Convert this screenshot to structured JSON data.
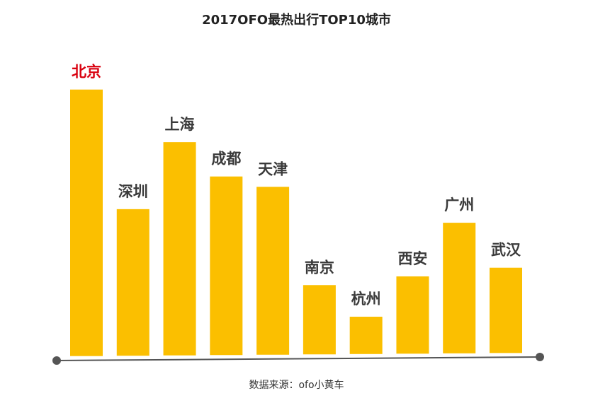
{
  "chart_data": {
    "type": "bar",
    "title": "2017OFO最热出行TOP10城市",
    "categories": [
      "北京",
      "深圳",
      "上海",
      "成都",
      "天津",
      "南京",
      "杭州",
      "西安",
      "广州",
      "武汉"
    ],
    "values": [
      100,
      55,
      80,
      67,
      63,
      26,
      14,
      29,
      49,
      32
    ],
    "highlight_category": "北京",
    "colors": {
      "bar": "#FBBF00",
      "label": "#3a3a3a",
      "highlight_label": "#D9000F",
      "axis": "#555555"
    },
    "grid": false,
    "legend": "none",
    "source": "数据来源：ofo小黄车"
  }
}
